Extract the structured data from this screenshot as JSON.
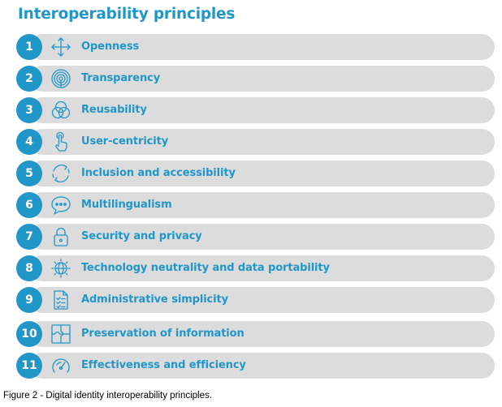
{
  "title": "Interoperability principles",
  "colors": {
    "accent": "#2196c9",
    "bar": "#dcdcdc",
    "text_dark": "#000000"
  },
  "principles": [
    {
      "number": "1",
      "label": "Openness",
      "icon": "move-arrows-icon"
    },
    {
      "number": "2",
      "label": "Transparency",
      "icon": "broadcast-icon"
    },
    {
      "number": "3",
      "label": "Reusability",
      "icon": "overlapping-circles-icon"
    },
    {
      "number": "4",
      "label": "User-centricity",
      "icon": "pointing-hand-icon"
    },
    {
      "number": "5",
      "label": "Inclusion and accessibility",
      "icon": "cycle-arrows-icon"
    },
    {
      "number": "6",
      "label": "Multilingualism",
      "icon": "speech-bubble-icon"
    },
    {
      "number": "7",
      "label": "Security and privacy",
      "icon": "padlock-icon"
    },
    {
      "number": "8",
      "label": "Technology neutrality and data portability",
      "icon": "globe-gear-icon"
    },
    {
      "number": "9",
      "label": "Administrative simplicity",
      "icon": "checklist-icon"
    },
    {
      "number": "10",
      "label": "Preservation of information",
      "icon": "puzzle-icon"
    },
    {
      "number": "11",
      "label": "Effectiveness and efficiency",
      "icon": "speedometer-icon"
    }
  ],
  "caption": "Figure 2 - Digital identity interoperability principles."
}
